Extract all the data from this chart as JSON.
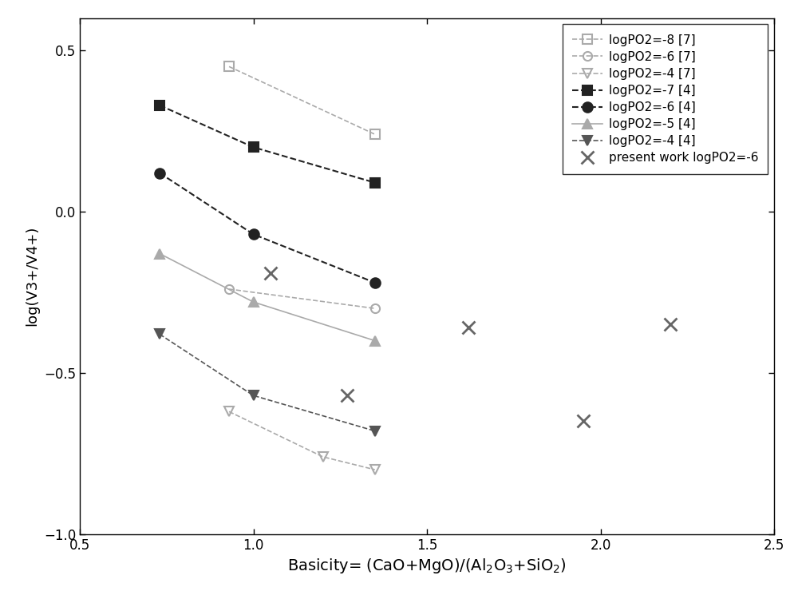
{
  "series": [
    {
      "label": "logPO2=-8 [7]",
      "x": [
        0.93,
        1.35
      ],
      "y": [
        0.45,
        0.24
      ],
      "color": "#aaaaaa",
      "marker": "s",
      "fillstyle": "none",
      "linestyle": "--",
      "linewidth": 1.2,
      "markersize": 8
    },
    {
      "label": "logPO2=-6 [7]",
      "x": [
        0.93,
        1.35
      ],
      "y": [
        -0.24,
        -0.3
      ],
      "color": "#aaaaaa",
      "marker": "o",
      "fillstyle": "none",
      "linestyle": "--",
      "linewidth": 1.2,
      "markersize": 8
    },
    {
      "label": "logPO2=-4 [7]",
      "x": [
        0.93,
        1.2,
        1.35
      ],
      "y": [
        -0.62,
        -0.76,
        -0.8
      ],
      "color": "#aaaaaa",
      "marker": "v",
      "fillstyle": "none",
      "linestyle": "--",
      "linewidth": 1.2,
      "markersize": 8
    },
    {
      "label": "logPO2=-7 [4]",
      "x": [
        0.73,
        1.0,
        1.35
      ],
      "y": [
        0.33,
        0.2,
        0.09
      ],
      "color": "#222222",
      "marker": "s",
      "fillstyle": "full",
      "linestyle": "--",
      "linewidth": 1.5,
      "markersize": 9
    },
    {
      "label": "logPO2=-6 [4]",
      "x": [
        0.73,
        1.0,
        1.35
      ],
      "y": [
        0.12,
        -0.07,
        -0.22
      ],
      "color": "#222222",
      "marker": "o",
      "fillstyle": "full",
      "linestyle": "--",
      "linewidth": 1.5,
      "markersize": 9
    },
    {
      "label": "logPO2=-5 [4]",
      "x": [
        0.73,
        1.0,
        1.35
      ],
      "y": [
        -0.13,
        -0.28,
        -0.4
      ],
      "color": "#aaaaaa",
      "marker": "^",
      "fillstyle": "full",
      "linestyle": "-",
      "linewidth": 1.2,
      "markersize": 9
    },
    {
      "label": "logPO2=-4 [4]",
      "x": [
        0.73,
        1.0,
        1.35
      ],
      "y": [
        -0.38,
        -0.57,
        -0.68
      ],
      "color": "#555555",
      "marker": "v",
      "fillstyle": "full",
      "linestyle": "--",
      "linewidth": 1.2,
      "markersize": 9
    }
  ],
  "present_work": {
    "label": "present work logPO2=-6",
    "x": [
      1.05,
      1.27,
      1.62,
      1.95,
      2.2
    ],
    "y": [
      -0.19,
      -0.57,
      -0.36,
      -0.65,
      -0.35
    ],
    "color": "#666666",
    "marker": "x",
    "markersize": 11,
    "linewidth": 2.0
  },
  "xlabel": "Basicity= (CaO+MgO)/(Al$_2$O$_3$+SiO$_2$)",
  "ylabel": "log(V3+/V4+)",
  "xlim": [
    0.5,
    2.5
  ],
  "ylim": [
    -1.0,
    0.6
  ],
  "xticks": [
    0.5,
    1.0,
    1.5,
    2.0,
    2.5
  ],
  "yticks": [
    -1.0,
    -0.5,
    0.0,
    0.5
  ],
  "background_color": "#ffffff",
  "legend_loc": "upper right",
  "figsize": [
    10.0,
    7.6
  ],
  "dpi": 100
}
